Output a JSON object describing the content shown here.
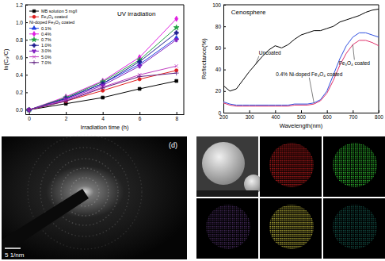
{
  "chart_data": [
    {
      "type": "line",
      "y_label": "ln(C₀/C)",
      "x_label": "Irradiation time (h)",
      "annotations": [
        "UV irradiation"
      ],
      "legend": "upper left",
      "legend_group_title": "Ni-doped Fe₃O₄ coated",
      "grid": false,
      "x": [
        0,
        2,
        4,
        6,
        8
      ],
      "xlim": [
        -0.2,
        8.4
      ],
      "ylim": [
        -0.05,
        1.2
      ],
      "xticks": [
        0,
        2,
        4,
        6,
        8
      ],
      "yticks": [
        {
          "value": 0,
          "label": "0.0"
        },
        0.2,
        0.4,
        0.6,
        0.8,
        {
          "value": 1,
          "label": "1.0"
        },
        1.2
      ],
      "series": [
        {
          "name": "MB solution 5 mg/l",
          "color": "#000000",
          "marker": "square",
          "line_style": "solid",
          "values": [
            0,
            0.07,
            0.14,
            0.24,
            0.33
          ]
        },
        {
          "name": "Fe₃O₄ coated",
          "color": "#e02020",
          "marker": "circle",
          "line_style": "solid",
          "values": [
            0,
            0.1,
            0.22,
            0.35,
            0.45
          ]
        },
        {
          "name": "0.1%",
          "color": "#2040e0",
          "marker": "triangle",
          "line_style": "solid",
          "values": [
            0,
            0.13,
            0.3,
            0.52,
            0.82
          ]
        },
        {
          "name": "0.4%",
          "color": "#e020e0",
          "marker": "diamond",
          "line_style": "solid",
          "values": [
            0,
            0.15,
            0.33,
            0.6,
            1.04
          ]
        },
        {
          "name": "0.7%",
          "color": "#20a040",
          "marker": "star",
          "line_style": "solid",
          "values": [
            0,
            0.14,
            0.32,
            0.57,
            0.94
          ]
        },
        {
          "name": "1.0%",
          "color": "#202090",
          "marker": "cross",
          "line_style": "solid",
          "values": [
            0,
            0.13,
            0.3,
            0.55,
            0.88
          ]
        },
        {
          "name": "3.0%",
          "color": "#8020c0",
          "marker": "wye",
          "line_style": "solid",
          "values": [
            0,
            0.12,
            0.28,
            0.5,
            0.8
          ]
        },
        {
          "name": "5.0%",
          "color": "#c040c0",
          "marker": "times",
          "line_style": "solid",
          "values": [
            0,
            0.11,
            0.26,
            0.4,
            0.5
          ]
        },
        {
          "name": "7.0%",
          "color": "#602080",
          "marker": "plus",
          "line_style": "solid",
          "values": [
            0,
            0.1,
            0.25,
            0.38,
            0.42
          ]
        }
      ]
    },
    {
      "type": "line",
      "y_label": "Reflectance(%)",
      "x_label": "Wavelength(nm)",
      "annotations": [
        "Cenosphere"
      ],
      "grid": false,
      "x": [
        200,
        225,
        250,
        275,
        300,
        325,
        350,
        375,
        400,
        425,
        450,
        475,
        500,
        525,
        550,
        575,
        600,
        625,
        650,
        675,
        700,
        725,
        750,
        775,
        800
      ],
      "xlim": [
        200,
        800
      ],
      "ylim": [
        0,
        100
      ],
      "xticks": [
        200,
        300,
        400,
        500,
        600,
        700,
        800
      ],
      "yticks": [
        0,
        20,
        40,
        60,
        80,
        100
      ],
      "series": [
        {
          "name": "Uncoated",
          "color": "#000000",
          "marker": "none",
          "line_style": "solid",
          "values": [
            25,
            20,
            22,
            30,
            38,
            45,
            52,
            58,
            62,
            60,
            63,
            68,
            72,
            74,
            76,
            76,
            78,
            80,
            84,
            86,
            88,
            90,
            93,
            95,
            96
          ]
        },
        {
          "name": "0.4% Ni-doped Fe₃O₄ coated",
          "color": "#3050e0",
          "marker": "none",
          "line_style": "solid",
          "values": [
            10,
            8,
            7,
            7,
            7,
            7,
            7,
            7,
            7,
            7,
            7,
            8,
            8,
            8,
            9,
            12,
            20,
            35,
            50,
            62,
            70,
            74,
            74,
            72,
            70
          ]
        },
        {
          "name": "Fe₃O₄ coated",
          "color": "#e0306a",
          "marker": "none",
          "line_style": "solid",
          "values": [
            9,
            7,
            6,
            6,
            6,
            6,
            6,
            6,
            6,
            6,
            6,
            7,
            7,
            7,
            8,
            11,
            18,
            30,
            44,
            55,
            63,
            67,
            67,
            65,
            62
          ]
        }
      ]
    }
  ],
  "images": [
    {
      "label": "(d)",
      "scale_bar": "5 1/nm"
    }
  ]
}
